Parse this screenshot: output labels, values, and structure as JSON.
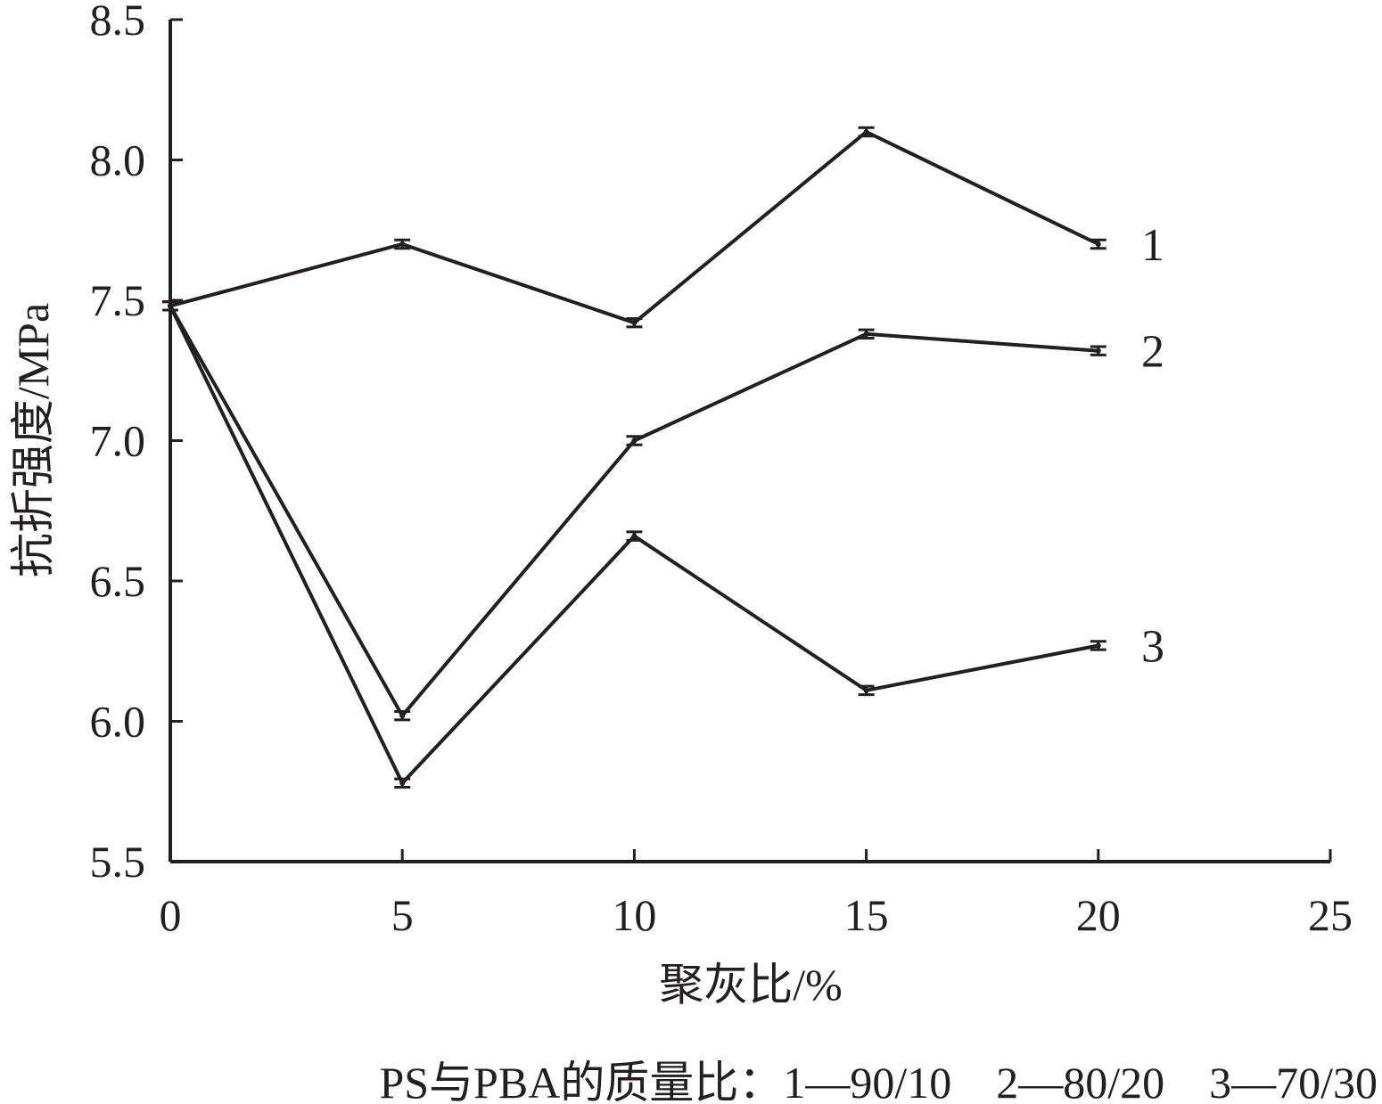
{
  "chart_data": {
    "type": "line",
    "xlabel": "聚灰比/%",
    "ylabel": "抗折强度/MPa",
    "xlim": [
      0,
      25
    ],
    "ylim": [
      5.5,
      8.5
    ],
    "x_ticks": [
      "0",
      "5",
      "10",
      "15",
      "20",
      "25"
    ],
    "y_ticks": [
      "5.5",
      "6.0",
      "6.5",
      "7.0",
      "7.5",
      "8.0",
      "8.5"
    ],
    "x": [
      0,
      5,
      10,
      15,
      20
    ],
    "series": [
      {
        "name": "1",
        "values": [
          7.48,
          7.7,
          7.42,
          8.1,
          7.7
        ],
        "errors": [
          0.015,
          0.015,
          0.015,
          0.015,
          0.015
        ]
      },
      {
        "name": "2",
        "values": [
          7.48,
          6.02,
          7.0,
          7.38,
          7.32
        ],
        "errors": [
          0.015,
          0.015,
          0.015,
          0.015,
          0.015
        ]
      },
      {
        "name": "3",
        "values": [
          7.48,
          5.78,
          6.66,
          6.11,
          6.27
        ],
        "errors": [
          0.015,
          0.015,
          0.015,
          0.015,
          0.015
        ]
      }
    ],
    "note": "PS与PBA的质量比：1—90/10　2—80/20　3—70/30",
    "grid": false,
    "line_color": "#231f20"
  }
}
